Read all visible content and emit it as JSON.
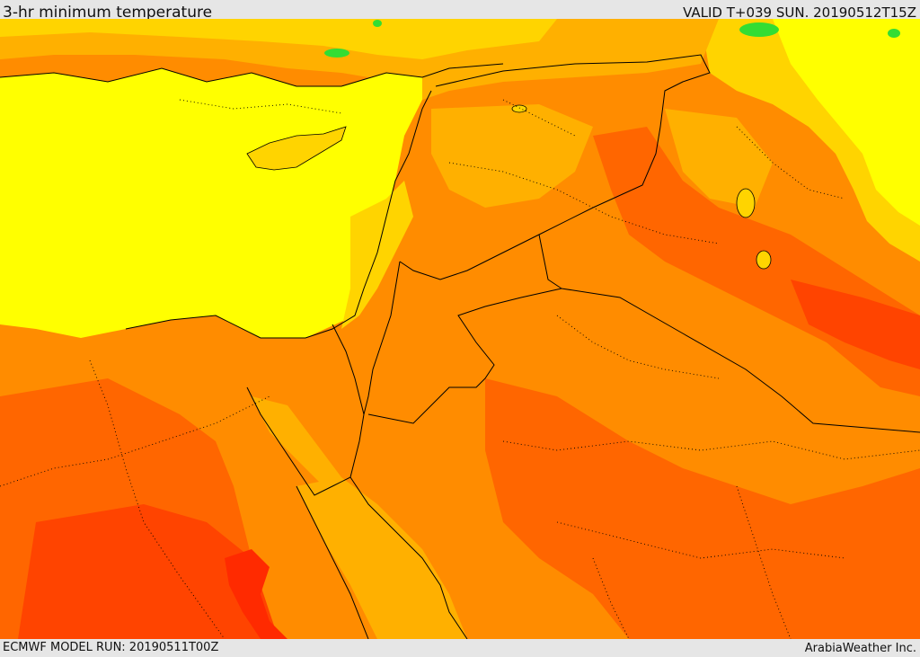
{
  "header": {
    "title": "3-hr minimum temperature",
    "valid": "VALID T+039 SUN. 20190512T15Z"
  },
  "footer": {
    "model_run": "ECMWF MODEL RUN: 20190511T00Z",
    "credit": "ArabiaWeather Inc."
  },
  "colors": {
    "sea_yellow": "#ffff00",
    "gold": "#ffd400",
    "amber": "#ffb000",
    "orange": "#ff8c00",
    "dark_orange": "#ff6600",
    "red_orange": "#ff4400",
    "red": "#ff2a00",
    "green": "#33dd33",
    "border_line": "#000000"
  }
}
